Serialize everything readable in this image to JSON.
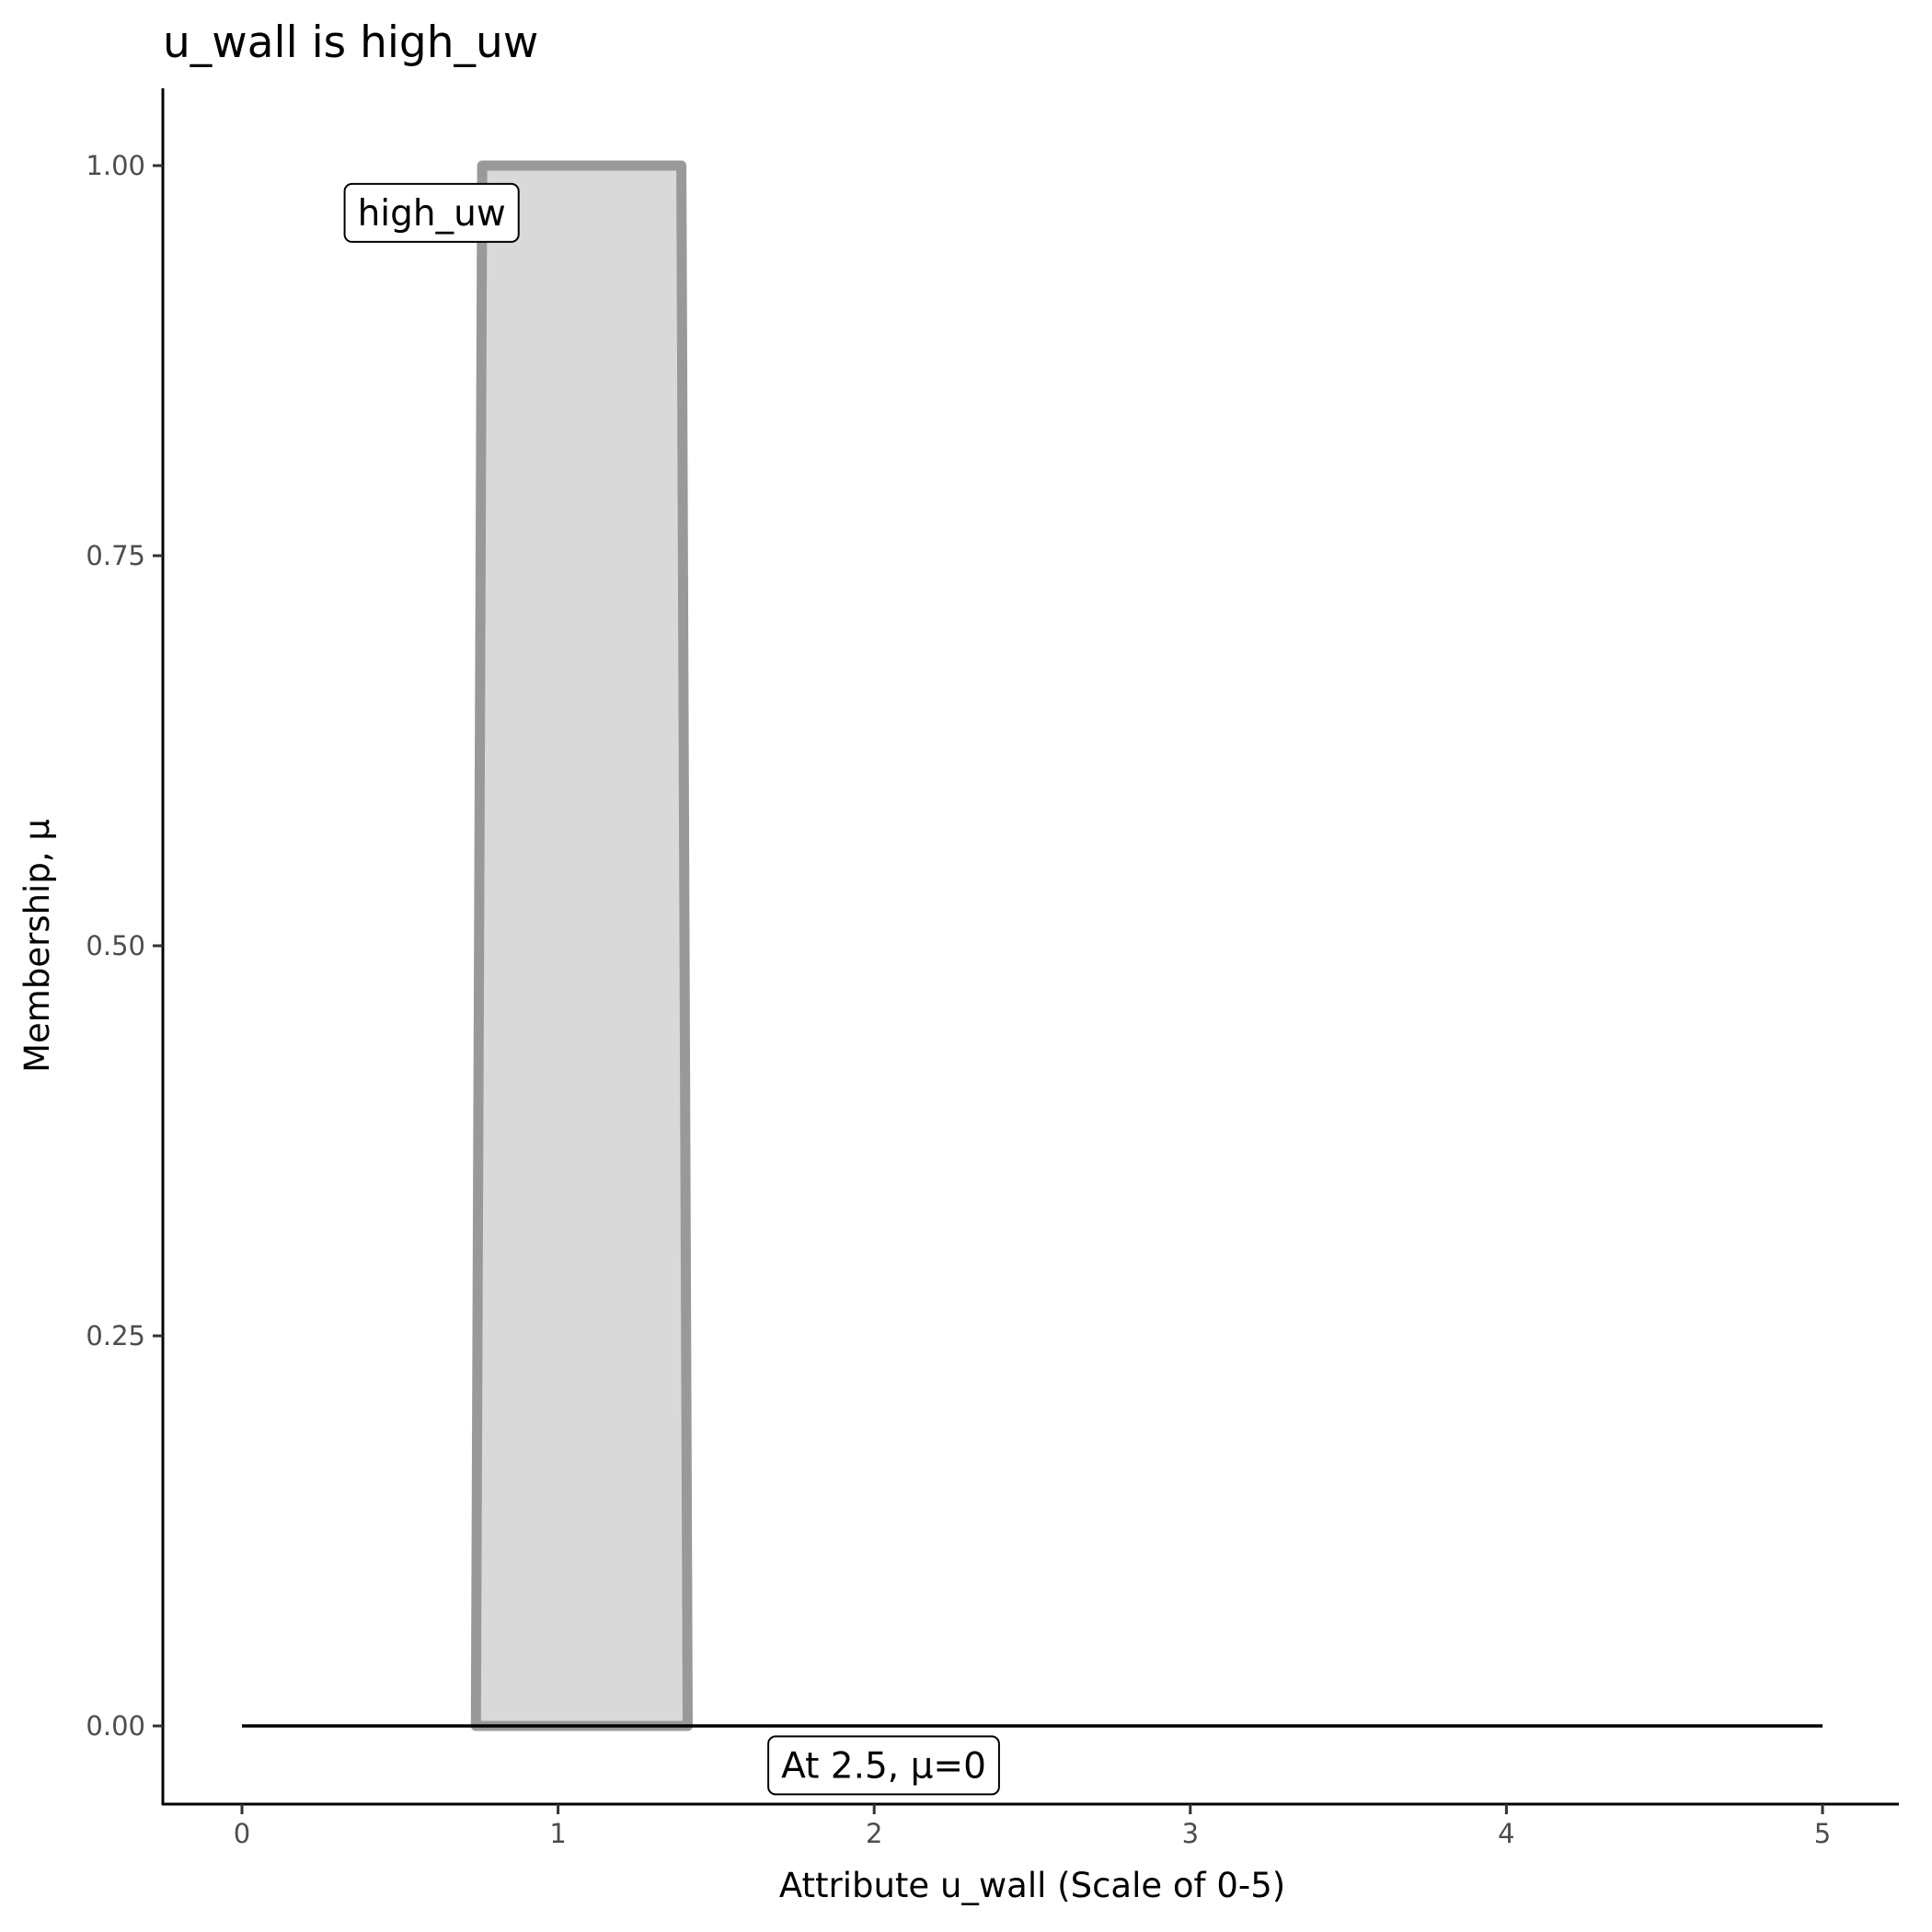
{
  "chart_data": {
    "type": "area",
    "title": "u_wall is high_uw",
    "xlabel": "Attribute u_wall (Scale of 0-5)",
    "ylabel": "Membership, μ",
    "xlim": [
      -0.25,
      5.25
    ],
    "ylim": [
      -0.05,
      1.05
    ],
    "x_ticks": [
      0,
      1,
      2,
      3,
      4,
      5
    ],
    "x_tick_labels": [
      "0",
      "1",
      "2",
      "3",
      "4",
      "5"
    ],
    "y_ticks": [
      0,
      0.25,
      0.5,
      0.75,
      1
    ],
    "y_tick_labels": [
      "0.00",
      "0.25",
      "0.50",
      "0.75",
      "1.00"
    ],
    "grid": false,
    "series": [
      {
        "name": "high_uw",
        "x": [
          0.74,
          0.76,
          1.39,
          1.41
        ],
        "y": [
          0,
          1,
          1,
          0
        ],
        "fill": "#d9d9d9",
        "stroke": "#999999"
      }
    ],
    "reference_line": {
      "x": [
        0,
        5
      ],
      "y": [
        0,
        0
      ],
      "color": "#000000"
    },
    "annotations": [
      {
        "text": "high_uw",
        "x": 0.6,
        "y": 0.97
      },
      {
        "text": "At 2.5, μ=0",
        "x": 2.03,
        "y": -0.025
      }
    ]
  }
}
